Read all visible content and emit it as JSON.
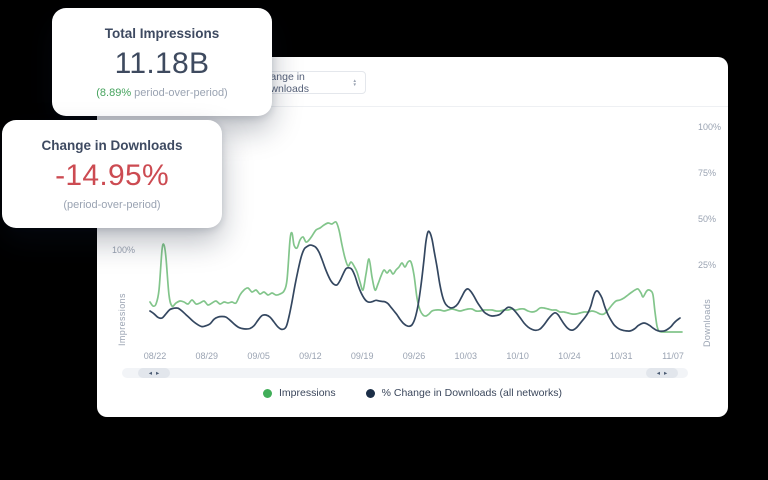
{
  "colors": {
    "background": "#000000",
    "panel": "#ffffff",
    "accent_green": "#46a35e",
    "accent_red": "#cc4b52",
    "line_green": "#82c58b",
    "line_navy": "#344760",
    "legend_dot_green": "#41ae59",
    "legend_dot_navy": "#1b2e47",
    "axis_gray": "#9aa3b2"
  },
  "cards": [
    {
      "title": "Total Impressions",
      "value": "11.18B",
      "sub_highlight": "(8.89%",
      "sub_rest": " period-over-period)"
    },
    {
      "title": "Change in Downloads",
      "value": "-14.95%",
      "sub_highlight": "",
      "sub_rest": "(period-over-period)"
    }
  ],
  "panel": {
    "dropdown": {
      "selected": "Change in Downloads",
      "caret_up": "▲",
      "caret_down": "▼"
    },
    "scrollbar": {
      "left_arrow": "◂",
      "right_arrow": "▸"
    }
  },
  "chart_data": {
    "type": "line",
    "title": "",
    "x_axis": {
      "labels": [
        "08/22",
        "08/29",
        "09/05",
        "09/12",
        "09/19",
        "09/26",
        "10/03",
        "10/10",
        "10/24",
        "10/31",
        "11/07"
      ]
    },
    "left_axis": {
      "title": "Impressions",
      "ticks": [
        "100%"
      ],
      "unit": "%"
    },
    "right_axis": {
      "title": "Downloads",
      "ticks": [
        "100%",
        "75%",
        "50%",
        "25%"
      ],
      "unit": "%"
    },
    "legend_position": "bottom",
    "grid": false,
    "series": [
      {
        "name": "Impressions",
        "axis": "left",
        "line_color": "#82c58b",
        "dot_color": "#41ae59",
        "points": [
          [
            10,
            48
          ],
          [
            13,
            44
          ],
          [
            16,
            46
          ],
          [
            19,
            60
          ],
          [
            22,
            100
          ],
          [
            24,
            105
          ],
          [
            26,
            92
          ],
          [
            29,
            55
          ],
          [
            32,
            44
          ],
          [
            36,
            47
          ],
          [
            40,
            49
          ],
          [
            44,
            48
          ],
          [
            48,
            46
          ],
          [
            52,
            50
          ],
          [
            56,
            46
          ],
          [
            60,
            47
          ],
          [
            64,
            49
          ],
          [
            68,
            45
          ],
          [
            72,
            47
          ],
          [
            76,
            49
          ],
          [
            80,
            46
          ],
          [
            84,
            48
          ],
          [
            88,
            47
          ],
          [
            92,
            48
          ],
          [
            96,
            47
          ],
          [
            100,
            55
          ],
          [
            104,
            60
          ],
          [
            108,
            62
          ],
          [
            112,
            58
          ],
          [
            116,
            60
          ],
          [
            120,
            56
          ],
          [
            124,
            58
          ],
          [
            128,
            55
          ],
          [
            132,
            57
          ],
          [
            136,
            55
          ],
          [
            140,
            56
          ],
          [
            144,
            59
          ],
          [
            147,
            70
          ],
          [
            150,
            110
          ],
          [
            152,
            117
          ],
          [
            154,
            105
          ],
          [
            157,
            102
          ],
          [
            160,
            110
          ],
          [
            163,
            113
          ],
          [
            166,
            108
          ],
          [
            169,
            110
          ],
          [
            172,
            114
          ],
          [
            176,
            120
          ],
          [
            180,
            122
          ],
          [
            184,
            125
          ],
          [
            188,
            127
          ],
          [
            192,
            126
          ],
          [
            196,
            128
          ],
          [
            199,
            120
          ],
          [
            202,
            105
          ],
          [
            205,
            92
          ],
          [
            208,
            84
          ],
          [
            211,
            88
          ],
          [
            214,
            84
          ],
          [
            217,
            78
          ],
          [
            220,
            68
          ],
          [
            223,
            60
          ],
          [
            226,
            76
          ],
          [
            229,
            91
          ],
          [
            232,
            73
          ],
          [
            235,
            60
          ],
          [
            238,
            66
          ],
          [
            241,
            74
          ],
          [
            244,
            80
          ],
          [
            247,
            77
          ],
          [
            250,
            80
          ],
          [
            253,
            76
          ],
          [
            256,
            80
          ],
          [
            259,
            83
          ],
          [
            262,
            87
          ],
          [
            265,
            83
          ],
          [
            268,
            88
          ],
          [
            271,
            88
          ],
          [
            274,
            75
          ],
          [
            277,
            52
          ],
          [
            280,
            40
          ],
          [
            283,
            35
          ],
          [
            286,
            34
          ],
          [
            289,
            36
          ],
          [
            292,
            39
          ],
          [
            296,
            40
          ],
          [
            300,
            40
          ],
          [
            304,
            39
          ],
          [
            308,
            40
          ],
          [
            312,
            41
          ],
          [
            316,
            40
          ],
          [
            320,
            39
          ],
          [
            324,
            40
          ],
          [
            328,
            41
          ],
          [
            332,
            41
          ],
          [
            336,
            39
          ],
          [
            340,
            39
          ],
          [
            344,
            40
          ],
          [
            348,
            40
          ],
          [
            352,
            40
          ],
          [
            356,
            39
          ],
          [
            360,
            39
          ],
          [
            364,
            40
          ],
          [
            368,
            40
          ],
          [
            372,
            41
          ],
          [
            376,
            40
          ],
          [
            380,
            41
          ],
          [
            384,
            41
          ],
          [
            388,
            39
          ],
          [
            392,
            38
          ],
          [
            396,
            39
          ],
          [
            400,
            42
          ],
          [
            404,
            42
          ],
          [
            408,
            41
          ],
          [
            412,
            40
          ],
          [
            416,
            40
          ],
          [
            420,
            38
          ],
          [
            424,
            38
          ],
          [
            428,
            37
          ],
          [
            432,
            36
          ],
          [
            436,
            36
          ],
          [
            440,
            37
          ],
          [
            444,
            38
          ],
          [
            448,
            38
          ],
          [
            452,
            39
          ],
          [
            456,
            38
          ],
          [
            460,
            36
          ],
          [
            464,
            36
          ],
          [
            468,
            40
          ],
          [
            472,
            45
          ],
          [
            476,
            49
          ],
          [
            480,
            50
          ],
          [
            484,
            52
          ],
          [
            488,
            55
          ],
          [
            492,
            58
          ],
          [
            495,
            60
          ],
          [
            498,
            61
          ],
          [
            501,
            57
          ],
          [
            503,
            53
          ],
          [
            506,
            58
          ],
          [
            508,
            60
          ],
          [
            511,
            59
          ],
          [
            513,
            55
          ],
          [
            515,
            38
          ],
          [
            517,
            24
          ],
          [
            519,
            19
          ],
          [
            522,
            18
          ],
          [
            526,
            18
          ],
          [
            530,
            18
          ],
          [
            534,
            18
          ],
          [
            538,
            18
          ],
          [
            542,
            18
          ]
        ]
      },
      {
        "name": "% Change in Downloads (all networks)",
        "axis": "right",
        "line_color": "#344760",
        "dot_color": "#1b2e47",
        "points": [
          [
            10,
            0
          ],
          [
            14,
            -1.5
          ],
          [
            18,
            -3.5
          ],
          [
            22,
            -3.8
          ],
          [
            26,
            -1.5
          ],
          [
            30,
            0.8
          ],
          [
            34,
            1.5
          ],
          [
            38,
            1.5
          ],
          [
            42,
            0
          ],
          [
            46,
            -2
          ],
          [
            50,
            -4
          ],
          [
            54,
            -6
          ],
          [
            58,
            -7.5
          ],
          [
            62,
            -8.5
          ],
          [
            66,
            -8
          ],
          [
            70,
            -7
          ],
          [
            74,
            -4.5
          ],
          [
            78,
            -3.3
          ],
          [
            82,
            -3
          ],
          [
            86,
            -3.3
          ],
          [
            90,
            -5
          ],
          [
            94,
            -7
          ],
          [
            98,
            -8.7
          ],
          [
            102,
            -9.5
          ],
          [
            106,
            -9.8
          ],
          [
            110,
            -9.5
          ],
          [
            114,
            -8
          ],
          [
            118,
            -5
          ],
          [
            122,
            -2.5
          ],
          [
            126,
            -2.2
          ],
          [
            130,
            -3.3
          ],
          [
            134,
            -6
          ],
          [
            138,
            -8.7
          ],
          [
            142,
            -10
          ],
          [
            146,
            -8.7
          ],
          [
            149,
            -3
          ],
          [
            152,
            5
          ],
          [
            155,
            14
          ],
          [
            158,
            22
          ],
          [
            161,
            29
          ],
          [
            164,
            33.5
          ],
          [
            167,
            35
          ],
          [
            170,
            35.8
          ],
          [
            173,
            35.5
          ],
          [
            176,
            34.5
          ],
          [
            179,
            32
          ],
          [
            182,
            28
          ],
          [
            185,
            23.5
          ],
          [
            188,
            19.5
          ],
          [
            191,
            16.3
          ],
          [
            194,
            14.5
          ],
          [
            197,
            14.2
          ],
          [
            200,
            16.5
          ],
          [
            203,
            20
          ],
          [
            206,
            23
          ],
          [
            209,
            23.5
          ],
          [
            212,
            22.5
          ],
          [
            215,
            19
          ],
          [
            218,
            14
          ],
          [
            221,
            10
          ],
          [
            224,
            7
          ],
          [
            227,
            5.2
          ],
          [
            230,
            4.8
          ],
          [
            233,
            5.2
          ],
          [
            236,
            5.8
          ],
          [
            239,
            5.5
          ],
          [
            242,
            5.2
          ],
          [
            245,
            5
          ],
          [
            248,
            4
          ],
          [
            251,
            2
          ],
          [
            254,
            0
          ],
          [
            257,
            -2
          ],
          [
            260,
            -4.5
          ],
          [
            263,
            -6.5
          ],
          [
            266,
            -7.8
          ],
          [
            269,
            -8.3
          ],
          [
            272,
            -7.5
          ],
          [
            275,
            -4
          ],
          [
            278,
            3
          ],
          [
            281,
            14
          ],
          [
            284,
            28
          ],
          [
            286,
            38
          ],
          [
            288,
            43
          ],
          [
            290,
            42.5
          ],
          [
            292,
            39
          ],
          [
            294,
            33
          ],
          [
            297,
            24
          ],
          [
            300,
            14
          ],
          [
            303,
            7
          ],
          [
            306,
            3.5
          ],
          [
            310,
            1.8
          ],
          [
            314,
            2
          ],
          [
            318,
            4
          ],
          [
            322,
            8
          ],
          [
            325,
            11
          ],
          [
            328,
            12
          ],
          [
            331,
            10.5
          ],
          [
            334,
            8
          ],
          [
            337,
            5
          ],
          [
            340,
            2.5
          ],
          [
            344,
            -0.5
          ],
          [
            348,
            -2
          ],
          [
            352,
            -2.7
          ],
          [
            356,
            -2.5
          ],
          [
            360,
            -1.8
          ],
          [
            364,
            0.3
          ],
          [
            368,
            2
          ],
          [
            372,
            1.5
          ],
          [
            376,
            -0.7
          ],
          [
            380,
            -3.5
          ],
          [
            384,
            -6.5
          ],
          [
            388,
            -8.7
          ],
          [
            392,
            -10
          ],
          [
            396,
            -10.5
          ],
          [
            400,
            -9.8
          ],
          [
            404,
            -7.5
          ],
          [
            408,
            -4.5
          ],
          [
            412,
            -2
          ],
          [
            415,
            -1
          ],
          [
            418,
            -2
          ],
          [
            421,
            -4.5
          ],
          [
            424,
            -7
          ],
          [
            427,
            -9
          ],
          [
            430,
            -10.2
          ],
          [
            433,
            -10.3
          ],
          [
            436,
            -9.3
          ],
          [
            439,
            -7.5
          ],
          [
            442,
            -5.5
          ],
          [
            445,
            -3.5
          ],
          [
            448,
            -1
          ],
          [
            451,
            3
          ],
          [
            453,
            7
          ],
          [
            455,
            10
          ],
          [
            457,
            10.9
          ],
          [
            459,
            10
          ],
          [
            462,
            7
          ],
          [
            465,
            2
          ],
          [
            468,
            -2
          ],
          [
            471,
            -5
          ],
          [
            474,
            -7.5
          ],
          [
            477,
            -9
          ],
          [
            480,
            -10
          ],
          [
            483,
            -10.5
          ],
          [
            486,
            -10.8
          ],
          [
            489,
            -10.9
          ],
          [
            492,
            -10.5
          ],
          [
            495,
            -9.5
          ],
          [
            498,
            -8
          ],
          [
            501,
            -7
          ],
          [
            504,
            -6.5
          ],
          [
            507,
            -7
          ],
          [
            510,
            -8
          ],
          [
            513,
            -9.3
          ],
          [
            516,
            -10.3
          ],
          [
            519,
            -10.9
          ],
          [
            522,
            -11
          ],
          [
            525,
            -10.7
          ],
          [
            528,
            -9.8
          ],
          [
            531,
            -8.5
          ],
          [
            534,
            -6.5
          ],
          [
            537,
            -5
          ],
          [
            540,
            -3.8
          ]
        ]
      }
    ]
  }
}
